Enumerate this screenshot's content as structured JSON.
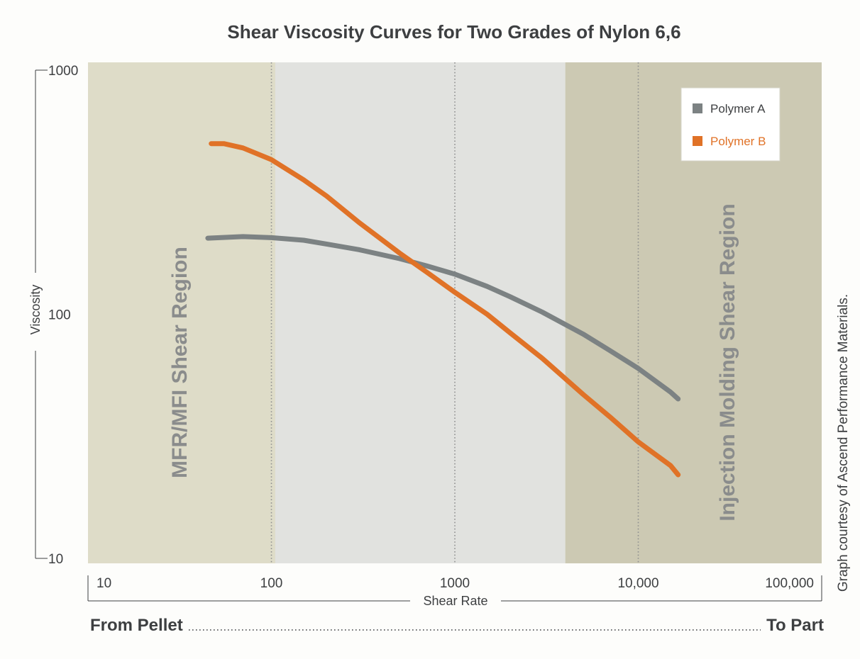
{
  "chart_data": {
    "type": "line",
    "title": "Shear Viscosity Curves for Two Grades of Nylon 6,6",
    "xlabel": "Shear Rate",
    "ylabel": "Viscosity",
    "x_scale": "log",
    "y_scale": "log",
    "xlim": [
      10,
      100000
    ],
    "ylim": [
      10,
      1000
    ],
    "x_ticks": [
      {
        "value": 10,
        "label": "10"
      },
      {
        "value": 100,
        "label": "100"
      },
      {
        "value": 1000,
        "label": "1000"
      },
      {
        "value": 10000,
        "label": "10,000"
      },
      {
        "value": 100000,
        "label": "100,000"
      }
    ],
    "y_ticks": [
      {
        "value": 10,
        "label": "10"
      },
      {
        "value": 100,
        "label": "100"
      },
      {
        "value": 1000,
        "label": "1000"
      }
    ],
    "grid": "vertical dotted lines at 100, 1000, 10,000",
    "legend": {
      "placement": "top-right"
    },
    "regions": [
      {
        "label": "MFR/MFI Shear Region",
        "x_range": [
          10,
          105
        ],
        "color": "#dedcc8"
      },
      {
        "label": "",
        "x_range": [
          105,
          4000
        ],
        "color": "#e1e2df"
      },
      {
        "label": "Injection Molding Shear Region",
        "x_range": [
          4000,
          100000
        ],
        "color": "#ccc9b3"
      }
    ],
    "series": [
      {
        "name": "Polymer A",
        "color": "#7c8283",
        "x": [
          45,
          70,
          100,
          150,
          200,
          300,
          500,
          700,
          1000,
          1500,
          2000,
          3000,
          5000,
          7000,
          10000,
          15000,
          16500
        ],
        "y": [
          205,
          208,
          206,
          201,
          194,
          184,
          169,
          158,
          146,
          130,
          118,
          102,
          83,
          71,
          60,
          48,
          45
        ]
      },
      {
        "name": "Polymer B",
        "color": "#e07227",
        "x": [
          47,
          55,
          70,
          100,
          150,
          200,
          300,
          500,
          700,
          1000,
          1500,
          2000,
          3000,
          5000,
          7000,
          10000,
          15000,
          16500
        ],
        "y": [
          500,
          500,
          480,
          430,
          355,
          305,
          238,
          178,
          149,
          123,
          100,
          84,
          66,
          47,
          38,
          30,
          24,
          22
        ]
      }
    ]
  },
  "credit": "Graph courtesy of Ascend Performance Materials.",
  "footer": {
    "left": "From Pellet",
    "right": "To Part"
  },
  "colors": {
    "text": "#3d3f41",
    "polymer_a": "#7c8283",
    "polymer_b": "#e07227"
  }
}
